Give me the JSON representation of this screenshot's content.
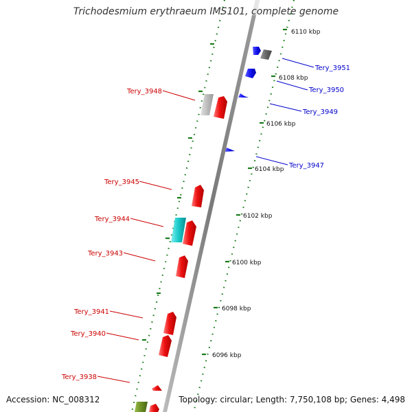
{
  "title": "Trichodesmium erythraeum IMS101, complete genome",
  "accession": "Accession: NC_008312",
  "summary": "Topology: circular; Length: 7,750,108 bp; Genes: 4,498",
  "colors": {
    "backbone": "#8a8a8a",
    "ruler": "#1a7a1a",
    "forward_label": "#cc0000",
    "reverse_label": "#0000cc",
    "cds": "#ee1111",
    "cds_reverse": "#1111ee",
    "rna": "#19c9c9",
    "other": "#bbbbbb",
    "other_dark": "#666666",
    "olive": "#6b8e23"
  },
  "ruler_labels": [
    "6110 kbp",
    "6108 kbp",
    "6106 kbp",
    "6104 kbp",
    "6102 kbp",
    "6100 kbp",
    "6098 kbp",
    "6096 kbp"
  ],
  "forward_genes": [
    "Tery_3948",
    "Tery_3945",
    "Tery_3944",
    "Tery_3943",
    "Tery_3941",
    "Tery_3940",
    "Tery_3938"
  ],
  "reverse_genes": [
    "Tery_3951",
    "Tery_3950",
    "Tery_3949",
    "Tery_3947"
  ]
}
